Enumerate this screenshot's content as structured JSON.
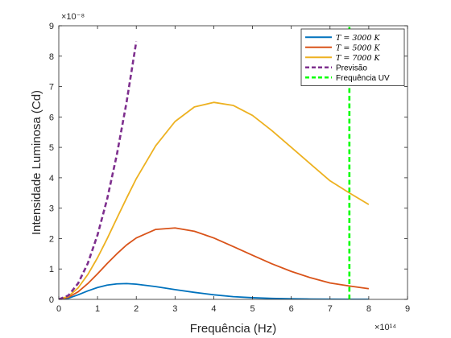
{
  "chart_data": {
    "type": "line",
    "xlabel": "Frequência (Hz)",
    "ylabel": "Intensidade Luminosa (Cd)",
    "x_exponent_label": "×10¹⁴",
    "y_exponent_label": "×10⁻⁸",
    "xlim": [
      0,
      9
    ],
    "ylim": [
      0,
      9
    ],
    "x_ticks": [
      "0",
      "1",
      "2",
      "3",
      "4",
      "5",
      "6",
      "7",
      "8",
      "9"
    ],
    "y_ticks": [
      "0",
      "1",
      "2",
      "3",
      "4",
      "5",
      "6",
      "7",
      "8",
      "9"
    ],
    "grid": false,
    "legend_position": "top-right",
    "series": [
      {
        "name": "T = 3000 K",
        "color": "#0072BD",
        "style": "solid",
        "x": [
          0,
          0.25,
          0.5,
          0.75,
          1.0,
          1.25,
          1.5,
          1.75,
          2.0,
          2.5,
          3.0,
          3.5,
          4.0,
          4.5,
          5.0,
          5.5,
          6.0,
          6.5,
          7.0,
          7.5,
          8.0
        ],
        "y": [
          0,
          0.04,
          0.15,
          0.28,
          0.39,
          0.47,
          0.51,
          0.52,
          0.5,
          0.42,
          0.32,
          0.23,
          0.15,
          0.09,
          0.055,
          0.032,
          0.018,
          0.01,
          0.005,
          0.003,
          0.001
        ]
      },
      {
        "name": "T = 5000 K",
        "color": "#D95319",
        "style": "solid",
        "x": [
          0,
          0.25,
          0.5,
          0.75,
          1.0,
          1.25,
          1.5,
          1.75,
          2.0,
          2.5,
          3.0,
          3.5,
          4.0,
          4.5,
          5.0,
          5.5,
          6.0,
          6.5,
          7.0,
          7.5,
          8.0
        ],
        "y": [
          0,
          0.07,
          0.25,
          0.52,
          0.84,
          1.18,
          1.5,
          1.79,
          2.02,
          2.3,
          2.35,
          2.24,
          2.02,
          1.74,
          1.45,
          1.17,
          0.92,
          0.71,
          0.54,
          0.44,
          0.35
        ]
      },
      {
        "name": "T = 7000 K",
        "color": "#EDB120",
        "style": "solid",
        "x": [
          0,
          0.25,
          0.5,
          0.75,
          1.0,
          1.25,
          1.5,
          1.75,
          2.0,
          2.5,
          3.0,
          3.5,
          4.0,
          4.5,
          5.0,
          5.5,
          6.0,
          6.5,
          7.0,
          7.5,
          8.0
        ],
        "y": [
          0,
          0.1,
          0.38,
          0.82,
          1.37,
          2.0,
          2.67,
          3.33,
          3.97,
          5.05,
          5.85,
          6.33,
          6.48,
          6.38,
          6.05,
          5.55,
          5.0,
          4.45,
          3.9,
          3.5,
          3.12
        ]
      },
      {
        "name": "Previsão",
        "color": "#7E2F8E",
        "style": "dashed",
        "x": [
          0,
          0.25,
          0.5,
          0.75,
          1.0,
          1.25,
          1.5,
          1.75,
          2.0
        ],
        "y": [
          0,
          0.13,
          0.53,
          1.19,
          2.12,
          3.31,
          4.77,
          6.49,
          8.48
        ]
      },
      {
        "name": "Frequência UV",
        "color": "#00FF00",
        "style": "dashed",
        "x": [
          7.5,
          7.5
        ],
        "y": [
          0,
          9
        ]
      }
    ]
  }
}
